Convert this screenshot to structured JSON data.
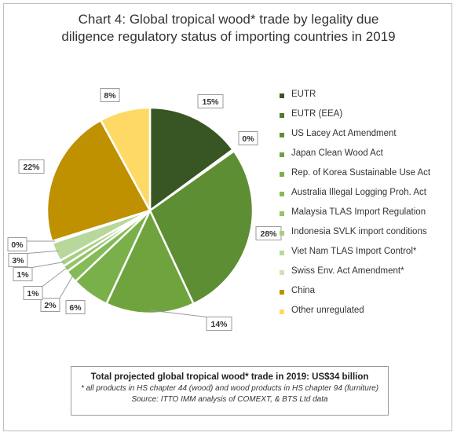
{
  "title_lines": [
    "Chart 4: Global tropical wood* trade by legality due",
    "diligence regulatory status of importing countries in 2019"
  ],
  "chart_data": {
    "type": "pie",
    "title": "Chart 4: Global tropical wood* trade by legality due diligence regulatory status of importing countries in 2019",
    "legend_position": "right",
    "slices": [
      {
        "name": "EUTR",
        "value": 15,
        "label": "15%",
        "color": "#375623"
      },
      {
        "name": "EUTR (EEA)",
        "value": 0.3,
        "label": "0%",
        "color": "#4e7a2b"
      },
      {
        "name": "US Lacey Act Amendment",
        "value": 28,
        "label": "28%",
        "color": "#5e8e34"
      },
      {
        "name": "Japan Clean Wood Act",
        "value": 14,
        "label": "14%",
        "color": "#6fa33e"
      },
      {
        "name": "Rep. of Korea Sustainable Use Act",
        "value": 6,
        "label": "6%",
        "color": "#7ab04a"
      },
      {
        "name": "Australia Illegal Logging Proh. Act",
        "value": 2,
        "label": "2%",
        "color": "#86ba57"
      },
      {
        "name": "Malaysia TLAS Import Regulation",
        "value": 1,
        "label": "1%",
        "color": "#96c46a"
      },
      {
        "name": "Indonesia SVLK import conditions",
        "value": 1,
        "label": "1%",
        "color": "#a7ce82"
      },
      {
        "name": "Viet Nam TLAS Import Control*",
        "value": 3,
        "label": "3%",
        "color": "#b8d89b"
      },
      {
        "name": "Swiss Env. Act Amendment*",
        "value": 0.3,
        "label": "0%",
        "color": "#cce3b6"
      },
      {
        "name": "China",
        "value": 22,
        "label": "22%",
        "color": "#bf9000"
      },
      {
        "name": "Other unregulated",
        "value": 8,
        "label": "8%",
        "color": "#ffd966"
      }
    ]
  },
  "footer": {
    "total": "Total projected global tropical wood* trade in 2019: US$34 billion",
    "note1": "* all products in HS chapter 44 (wood) and wood products in HS chapter 94 (furniture)",
    "note2": "Source: ITTO IMM analysis of COMEXT, & BTS Ltd data"
  }
}
